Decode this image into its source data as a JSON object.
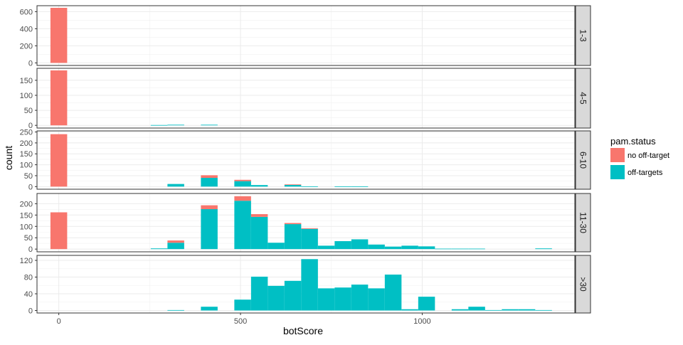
{
  "chart_data": {
    "type": "bar",
    "subtype": "faceted-stacked-histogram",
    "xlabel": "botScore",
    "ylabel": "count",
    "xlim": [
      -60,
      1420
    ],
    "x_ticks": [
      0,
      500,
      1000
    ],
    "bin_width": 46,
    "grid": true,
    "legend": {
      "title": "pam.status",
      "position": "right",
      "entries": [
        {
          "name": "no off-target",
          "color": "#F8766D"
        },
        {
          "name": "off-targets",
          "color": "#00BFC4"
        }
      ]
    },
    "series_order": [
      "no off-target",
      "off-targets"
    ],
    "facets": [
      {
        "label": "1-3",
        "ylim": [
          -30,
          670
        ],
        "y_ticks": [
          0,
          200,
          400,
          600
        ],
        "bins": [
          {
            "x": 0,
            "no_off_target": 645,
            "off_targets": 0
          }
        ]
      },
      {
        "label": "4-5",
        "ylim": [
          -9,
          190
        ],
        "y_ticks": [
          0,
          50,
          100,
          150
        ],
        "bins": [
          {
            "x": 0,
            "no_off_target": 183,
            "off_targets": 0
          },
          {
            "x": 276,
            "no_off_target": 0,
            "off_targets": 1
          },
          {
            "x": 322,
            "no_off_target": 0,
            "off_targets": 2
          },
          {
            "x": 414,
            "no_off_target": 0,
            "off_targets": 2
          }
        ]
      },
      {
        "label": "6-10",
        "ylim": [
          -12,
          255
        ],
        "y_ticks": [
          0,
          50,
          100,
          150,
          200,
          250
        ],
        "bins": [
          {
            "x": 0,
            "no_off_target": 240,
            "off_targets": 0
          },
          {
            "x": 322,
            "no_off_target": 0,
            "off_targets": 12
          },
          {
            "x": 414,
            "no_off_target": 12,
            "off_targets": 40
          },
          {
            "x": 506,
            "no_off_target": 6,
            "off_targets": 25
          },
          {
            "x": 552,
            "no_off_target": 0,
            "off_targets": 7
          },
          {
            "x": 644,
            "no_off_target": 2,
            "off_targets": 8
          },
          {
            "x": 690,
            "no_off_target": 0,
            "off_targets": 1
          },
          {
            "x": 782,
            "no_off_target": 0,
            "off_targets": 1
          },
          {
            "x": 828,
            "no_off_target": 0,
            "off_targets": 1
          }
        ]
      },
      {
        "label": "11-30",
        "ylim": [
          -12,
          245
        ],
        "y_ticks": [
          0,
          50,
          100,
          150,
          200
        ],
        "bins": [
          {
            "x": 0,
            "no_off_target": 162,
            "off_targets": 0
          },
          {
            "x": 276,
            "no_off_target": 0,
            "off_targets": 3
          },
          {
            "x": 322,
            "no_off_target": 10,
            "off_targets": 28
          },
          {
            "x": 414,
            "no_off_target": 17,
            "off_targets": 176
          },
          {
            "x": 506,
            "no_off_target": 20,
            "off_targets": 213
          },
          {
            "x": 552,
            "no_off_target": 12,
            "off_targets": 142
          },
          {
            "x": 598,
            "no_off_target": 0,
            "off_targets": 28
          },
          {
            "x": 644,
            "no_off_target": 5,
            "off_targets": 110
          },
          {
            "x": 690,
            "no_off_target": 3,
            "off_targets": 89
          },
          {
            "x": 736,
            "no_off_target": 0,
            "off_targets": 15
          },
          {
            "x": 782,
            "no_off_target": 0,
            "off_targets": 35
          },
          {
            "x": 828,
            "no_off_target": 0,
            "off_targets": 43
          },
          {
            "x": 874,
            "no_off_target": 0,
            "off_targets": 20
          },
          {
            "x": 920,
            "no_off_target": 0,
            "off_targets": 11
          },
          {
            "x": 966,
            "no_off_target": 0,
            "off_targets": 15
          },
          {
            "x": 1012,
            "no_off_target": 0,
            "off_targets": 12
          },
          {
            "x": 1058,
            "no_off_target": 0,
            "off_targets": 2
          },
          {
            "x": 1104,
            "no_off_target": 0,
            "off_targets": 2
          },
          {
            "x": 1150,
            "no_off_target": 0,
            "off_targets": 2
          },
          {
            "x": 1334,
            "no_off_target": 0,
            "off_targets": 3
          }
        ]
      },
      {
        "label": ">30",
        "ylim": [
          -6,
          132
        ],
        "y_ticks": [
          0,
          40,
          80,
          120
        ],
        "bins": [
          {
            "x": 322,
            "no_off_target": 0,
            "off_targets": 1
          },
          {
            "x": 414,
            "no_off_target": 0,
            "off_targets": 9
          },
          {
            "x": 506,
            "no_off_target": 0,
            "off_targets": 26
          },
          {
            "x": 552,
            "no_off_target": 0,
            "off_targets": 81
          },
          {
            "x": 598,
            "no_off_target": 0,
            "off_targets": 59
          },
          {
            "x": 644,
            "no_off_target": 0,
            "off_targets": 71
          },
          {
            "x": 690,
            "no_off_target": 0,
            "off_targets": 123
          },
          {
            "x": 736,
            "no_off_target": 0,
            "off_targets": 53
          },
          {
            "x": 782,
            "no_off_target": 0,
            "off_targets": 55
          },
          {
            "x": 828,
            "no_off_target": 0,
            "off_targets": 62
          },
          {
            "x": 874,
            "no_off_target": 0,
            "off_targets": 53
          },
          {
            "x": 920,
            "no_off_target": 0,
            "off_targets": 86
          },
          {
            "x": 966,
            "no_off_target": 0,
            "off_targets": 3
          },
          {
            "x": 1012,
            "no_off_target": 0,
            "off_targets": 33
          },
          {
            "x": 1104,
            "no_off_target": 0,
            "off_targets": 3
          },
          {
            "x": 1150,
            "no_off_target": 0,
            "off_targets": 9
          },
          {
            "x": 1196,
            "no_off_target": 0,
            "off_targets": 1
          },
          {
            "x": 1242,
            "no_off_target": 0,
            "off_targets": 3
          },
          {
            "x": 1288,
            "no_off_target": 0,
            "off_targets": 3
          },
          {
            "x": 1334,
            "no_off_target": 0,
            "off_targets": 1
          }
        ]
      }
    ]
  }
}
